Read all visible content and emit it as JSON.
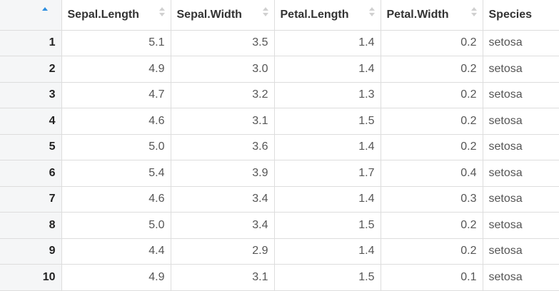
{
  "table": {
    "columns": [
      {
        "label": "",
        "sortable": true,
        "sort_state": "asc",
        "sort_icon": "sort-ascending-icon"
      },
      {
        "label": "Sepal.Length",
        "sortable": true,
        "sort_state": "none",
        "sort_icon": "sort-icon"
      },
      {
        "label": "Sepal.Width",
        "sortable": true,
        "sort_state": "none",
        "sort_icon": "sort-icon"
      },
      {
        "label": "Petal.Length",
        "sortable": true,
        "sort_state": "none",
        "sort_icon": "sort-icon"
      },
      {
        "label": "Petal.Width",
        "sortable": true,
        "sort_state": "none",
        "sort_icon": "sort-icon"
      },
      {
        "label": "Species",
        "sortable": false,
        "sort_state": "none",
        "sort_icon": ""
      }
    ],
    "rows": [
      {
        "rowname": "1",
        "cells": [
          "5.1",
          "3.5",
          "1.4",
          "0.2",
          "setosa"
        ]
      },
      {
        "rowname": "2",
        "cells": [
          "4.9",
          "3.0",
          "1.4",
          "0.2",
          "setosa"
        ]
      },
      {
        "rowname": "3",
        "cells": [
          "4.7",
          "3.2",
          "1.3",
          "0.2",
          "setosa"
        ]
      },
      {
        "rowname": "4",
        "cells": [
          "4.6",
          "3.1",
          "1.5",
          "0.2",
          "setosa"
        ]
      },
      {
        "rowname": "5",
        "cells": [
          "5.0",
          "3.6",
          "1.4",
          "0.2",
          "setosa"
        ]
      },
      {
        "rowname": "6",
        "cells": [
          "5.4",
          "3.9",
          "1.7",
          "0.4",
          "setosa"
        ]
      },
      {
        "rowname": "7",
        "cells": [
          "4.6",
          "3.4",
          "1.4",
          "0.3",
          "setosa"
        ]
      },
      {
        "rowname": "8",
        "cells": [
          "5.0",
          "3.4",
          "1.5",
          "0.2",
          "setosa"
        ]
      },
      {
        "rowname": "9",
        "cells": [
          "4.4",
          "2.9",
          "1.4",
          "0.2",
          "setosa"
        ]
      },
      {
        "rowname": "10",
        "cells": [
          "4.9",
          "3.1",
          "1.5",
          "0.1",
          "setosa"
        ]
      }
    ]
  },
  "colors": {
    "sort_active": "#2f8fe0",
    "sort_inactive": "#d0d0d0",
    "rowname_background": "#f5f6f7",
    "border": "#dddddd"
  }
}
